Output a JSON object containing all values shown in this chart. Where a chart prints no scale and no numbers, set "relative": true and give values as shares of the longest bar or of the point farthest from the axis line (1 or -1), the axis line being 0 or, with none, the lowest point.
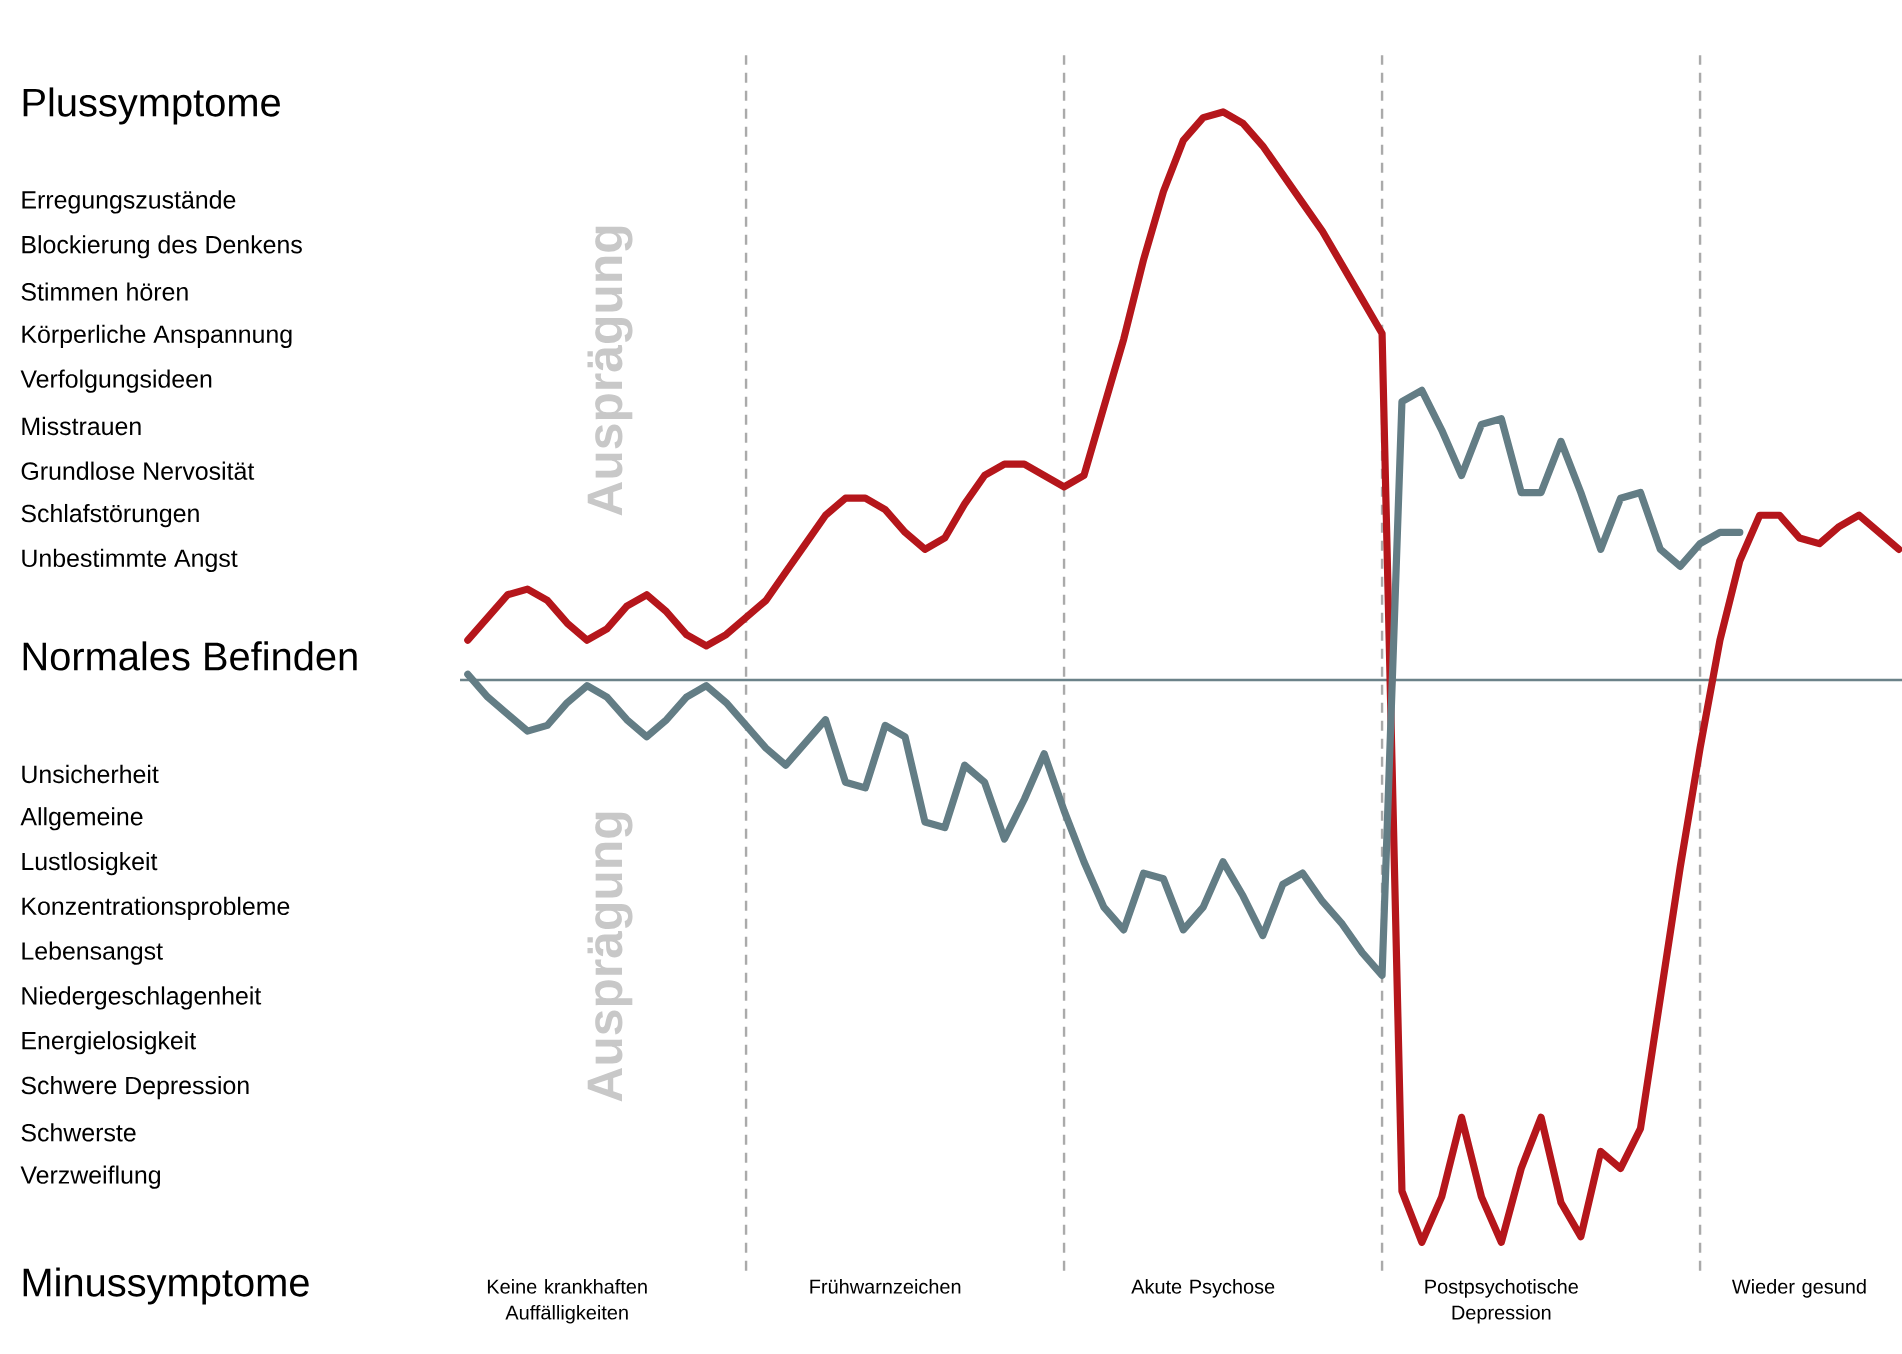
{
  "chart_data": {
    "type": "line",
    "relative": true,
    "tick_labels": "x",
    "line_style": "solid",
    "categories": [
      null,
      null,
      null,
      null,
      null,
      "Keine krankhaften Auffälligkeiten",
      null,
      null,
      null,
      null,
      null,
      null,
      null,
      null,
      null,
      null,
      null,
      null,
      null,
      null,
      null,
      "Frühwarnzeichen",
      null,
      null,
      null,
      null,
      null,
      null,
      null,
      null,
      null,
      null,
      null,
      null,
      null,
      null,
      null,
      "Akute Psychose",
      null,
      null,
      null,
      null,
      null,
      null,
      null,
      null,
      null,
      null,
      null,
      null,
      null,
      null,
      "Postpsychotische Depression",
      null,
      null,
      null,
      null,
      null,
      null,
      null,
      null,
      null,
      null,
      null,
      null,
      null,
      null,
      "Wieder gesund",
      null,
      null,
      null,
      null,
      null
    ],
    "series": [
      {
        "color": "#b5161b",
        "values": [
          0.07,
          0.11,
          0.15,
          0.16,
          0.14,
          0.1,
          0.07,
          0.09,
          0.13,
          0.15,
          0.12,
          0.08,
          0.06,
          0.08,
          0.11,
          0.14,
          0.19,
          0.24,
          0.29,
          0.32,
          0.32,
          0.3,
          0.26,
          0.23,
          0.25,
          0.31,
          0.36,
          0.38,
          0.38,
          0.36,
          0.34,
          0.36,
          0.48,
          0.6,
          0.74,
          0.86,
          0.95,
          0.99,
          1.0,
          0.98,
          0.94,
          0.89,
          0.84,
          0.79,
          0.73,
          0.67,
          0.61,
          -0.9,
          -0.99,
          -0.91,
          -0.77,
          -0.91,
          -0.99,
          -0.86,
          -0.77,
          -0.92,
          -0.98,
          -0.83,
          -0.86,
          -0.79,
          -0.56,
          -0.33,
          -0.12,
          0.07,
          0.21,
          0.29,
          0.29,
          0.25,
          0.24,
          0.27,
          0.29,
          0.26,
          0.23
        ]
      },
      {
        "color": "#637d85",
        "values": [
          0.01,
          -0.03,
          -0.06,
          -0.09,
          -0.08,
          -0.04,
          -0.01,
          -0.03,
          -0.07,
          -0.1,
          -0.07,
          -0.03,
          -0.01,
          -0.04,
          -0.08,
          -0.12,
          -0.15,
          -0.11,
          -0.07,
          -0.18,
          -0.19,
          -0.08,
          -0.1,
          -0.25,
          -0.26,
          -0.15,
          -0.18,
          -0.28,
          -0.21,
          -0.13,
          -0.23,
          -0.32,
          -0.4,
          -0.44,
          -0.34,
          -0.35,
          -0.44,
          -0.4,
          -0.32,
          -0.38,
          -0.45,
          -0.36,
          -0.34,
          -0.39,
          -0.43,
          -0.48,
          -0.52,
          0.49,
          0.51,
          0.44,
          0.36,
          0.45,
          0.46,
          0.33,
          0.33,
          0.42,
          0.33,
          0.23,
          0.32,
          0.33,
          0.23,
          0.2,
          0.24,
          0.26,
          0.26,
          null,
          null,
          null,
          null,
          null,
          null,
          null,
          null
        ]
      }
    ],
    "annotations": [
      "Plussymptome",
      "Erregungszustände",
      "Blockierung des Denkens",
      "Stimmen hören",
      "Körperliche Anspannung",
      "Verfolgungsideen",
      "Misstrauen",
      "Grundlose Nervosität",
      "Schlafstörungen",
      "Unbestimmte Angst",
      "Normales Befinden",
      "Unsicherheit",
      "Allgemeine",
      "Lustlosigkeit",
      "Konzentrationsprobleme",
      "Lebensangst",
      "Niedergeschlagenheit",
      "Energielosigkeit",
      "Schwere Depression",
      "Schwerste",
      "Verzweiflung",
      "Minussymptome",
      "Ausprägung",
      "Ausprägung"
    ]
  }
}
